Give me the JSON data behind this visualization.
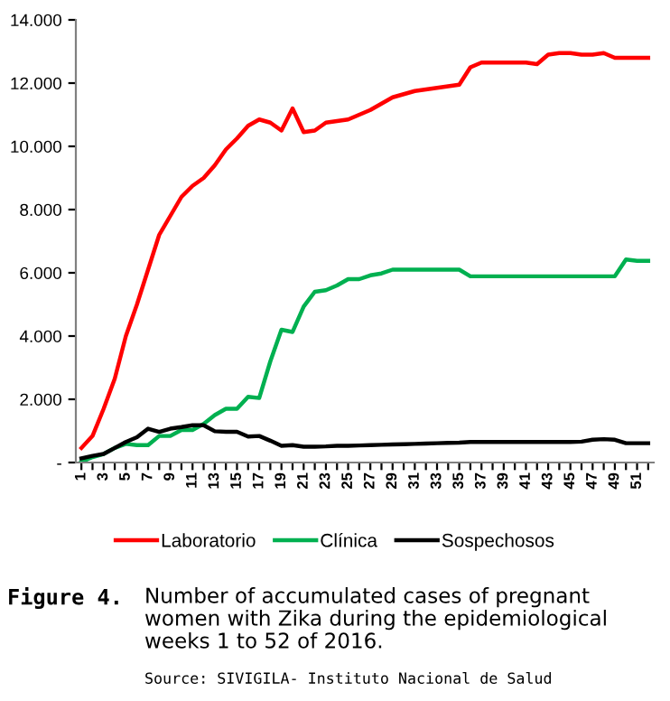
{
  "chart_data": {
    "type": "line",
    "categories": [
      "1",
      null,
      "3",
      null,
      "5",
      null,
      "7",
      null,
      "9",
      null,
      "11",
      null,
      "13",
      null,
      "15",
      null,
      "17",
      null,
      "19",
      null,
      "21",
      null,
      "23",
      null,
      "25",
      null,
      "27",
      null,
      "29",
      null,
      "31",
      null,
      "33",
      null,
      "35",
      null,
      "37",
      null,
      "39",
      null,
      "41",
      null,
      "43",
      null,
      "45",
      null,
      "47",
      null,
      "49",
      null,
      "51",
      null
    ],
    "series": [
      {
        "name": "Laboratorio",
        "color": "#ff0000",
        "values": [
          460,
          840,
          1700,
          2650,
          4000,
          5000,
          6100,
          7200,
          7800,
          8400,
          8750,
          9000,
          9400,
          9900,
          10250,
          10650,
          10850,
          10750,
          10500,
          11200,
          10450,
          10500,
          10750,
          10800,
          10850,
          11000,
          11150,
          11350,
          11550,
          11650,
          11750,
          11800,
          11850,
          11900,
          11950,
          12500,
          12650,
          12650,
          12650,
          12650,
          12650,
          12600,
          12900,
          12950,
          12950,
          12900,
          12900,
          12950,
          12800,
          12800,
          12800,
          12800
        ]
      },
      {
        "name": "Clínica",
        "color": "#00b050",
        "values": [
          20,
          170,
          270,
          460,
          590,
          550,
          550,
          840,
          840,
          1030,
          1030,
          1220,
          1500,
          1700,
          1700,
          2080,
          2040,
          3200,
          4200,
          4130,
          4930,
          5400,
          5450,
          5600,
          5800,
          5800,
          5920,
          5980,
          6100,
          6100,
          6100,
          6100,
          6100,
          6100,
          6100,
          5890,
          5890,
          5890,
          5890,
          5890,
          5890,
          5890,
          5890,
          5890,
          5890,
          5890,
          5890,
          5890,
          5890,
          6420,
          6380,
          6380
        ]
      },
      {
        "name": "Sospechosos",
        "color": "#000000",
        "values": [
          130,
          210,
          270,
          460,
          650,
          800,
          1070,
          970,
          1070,
          1120,
          1180,
          1180,
          990,
          970,
          970,
          820,
          840,
          690,
          530,
          550,
          500,
          500,
          510,
          530,
          530,
          540,
          550,
          560,
          570,
          580,
          590,
          600,
          610,
          620,
          630,
          650,
          650,
          650,
          650,
          650,
          650,
          650,
          650,
          650,
          650,
          660,
          720,
          740,
          720,
          610,
          610,
          610
        ]
      }
    ],
    "ylim": [
      0,
      14000
    ],
    "yticks": [
      {
        "value": 0,
        "label": "-"
      },
      {
        "value": 2000,
        "label": "2.000"
      },
      {
        "value": 4000,
        "label": "4.000"
      },
      {
        "value": 6000,
        "label": "6.000"
      },
      {
        "value": 8000,
        "label": "8.000"
      },
      {
        "value": 10000,
        "label": "10.000"
      },
      {
        "value": 12000,
        "label": "12.000"
      },
      {
        "value": 14000,
        "label": "14.000"
      }
    ],
    "grid": false,
    "legend": "bottom",
    "marker": "none",
    "line_style": "solid",
    "annotations": [
      "Figure 4.",
      "Number of accumulated cases of pregnant\nwomen with Zika during the epidemiological\nweeks 1 to 52 of 2016.",
      "Source: SIVIGILA- Instituto Nacional de Salud"
    ]
  }
}
